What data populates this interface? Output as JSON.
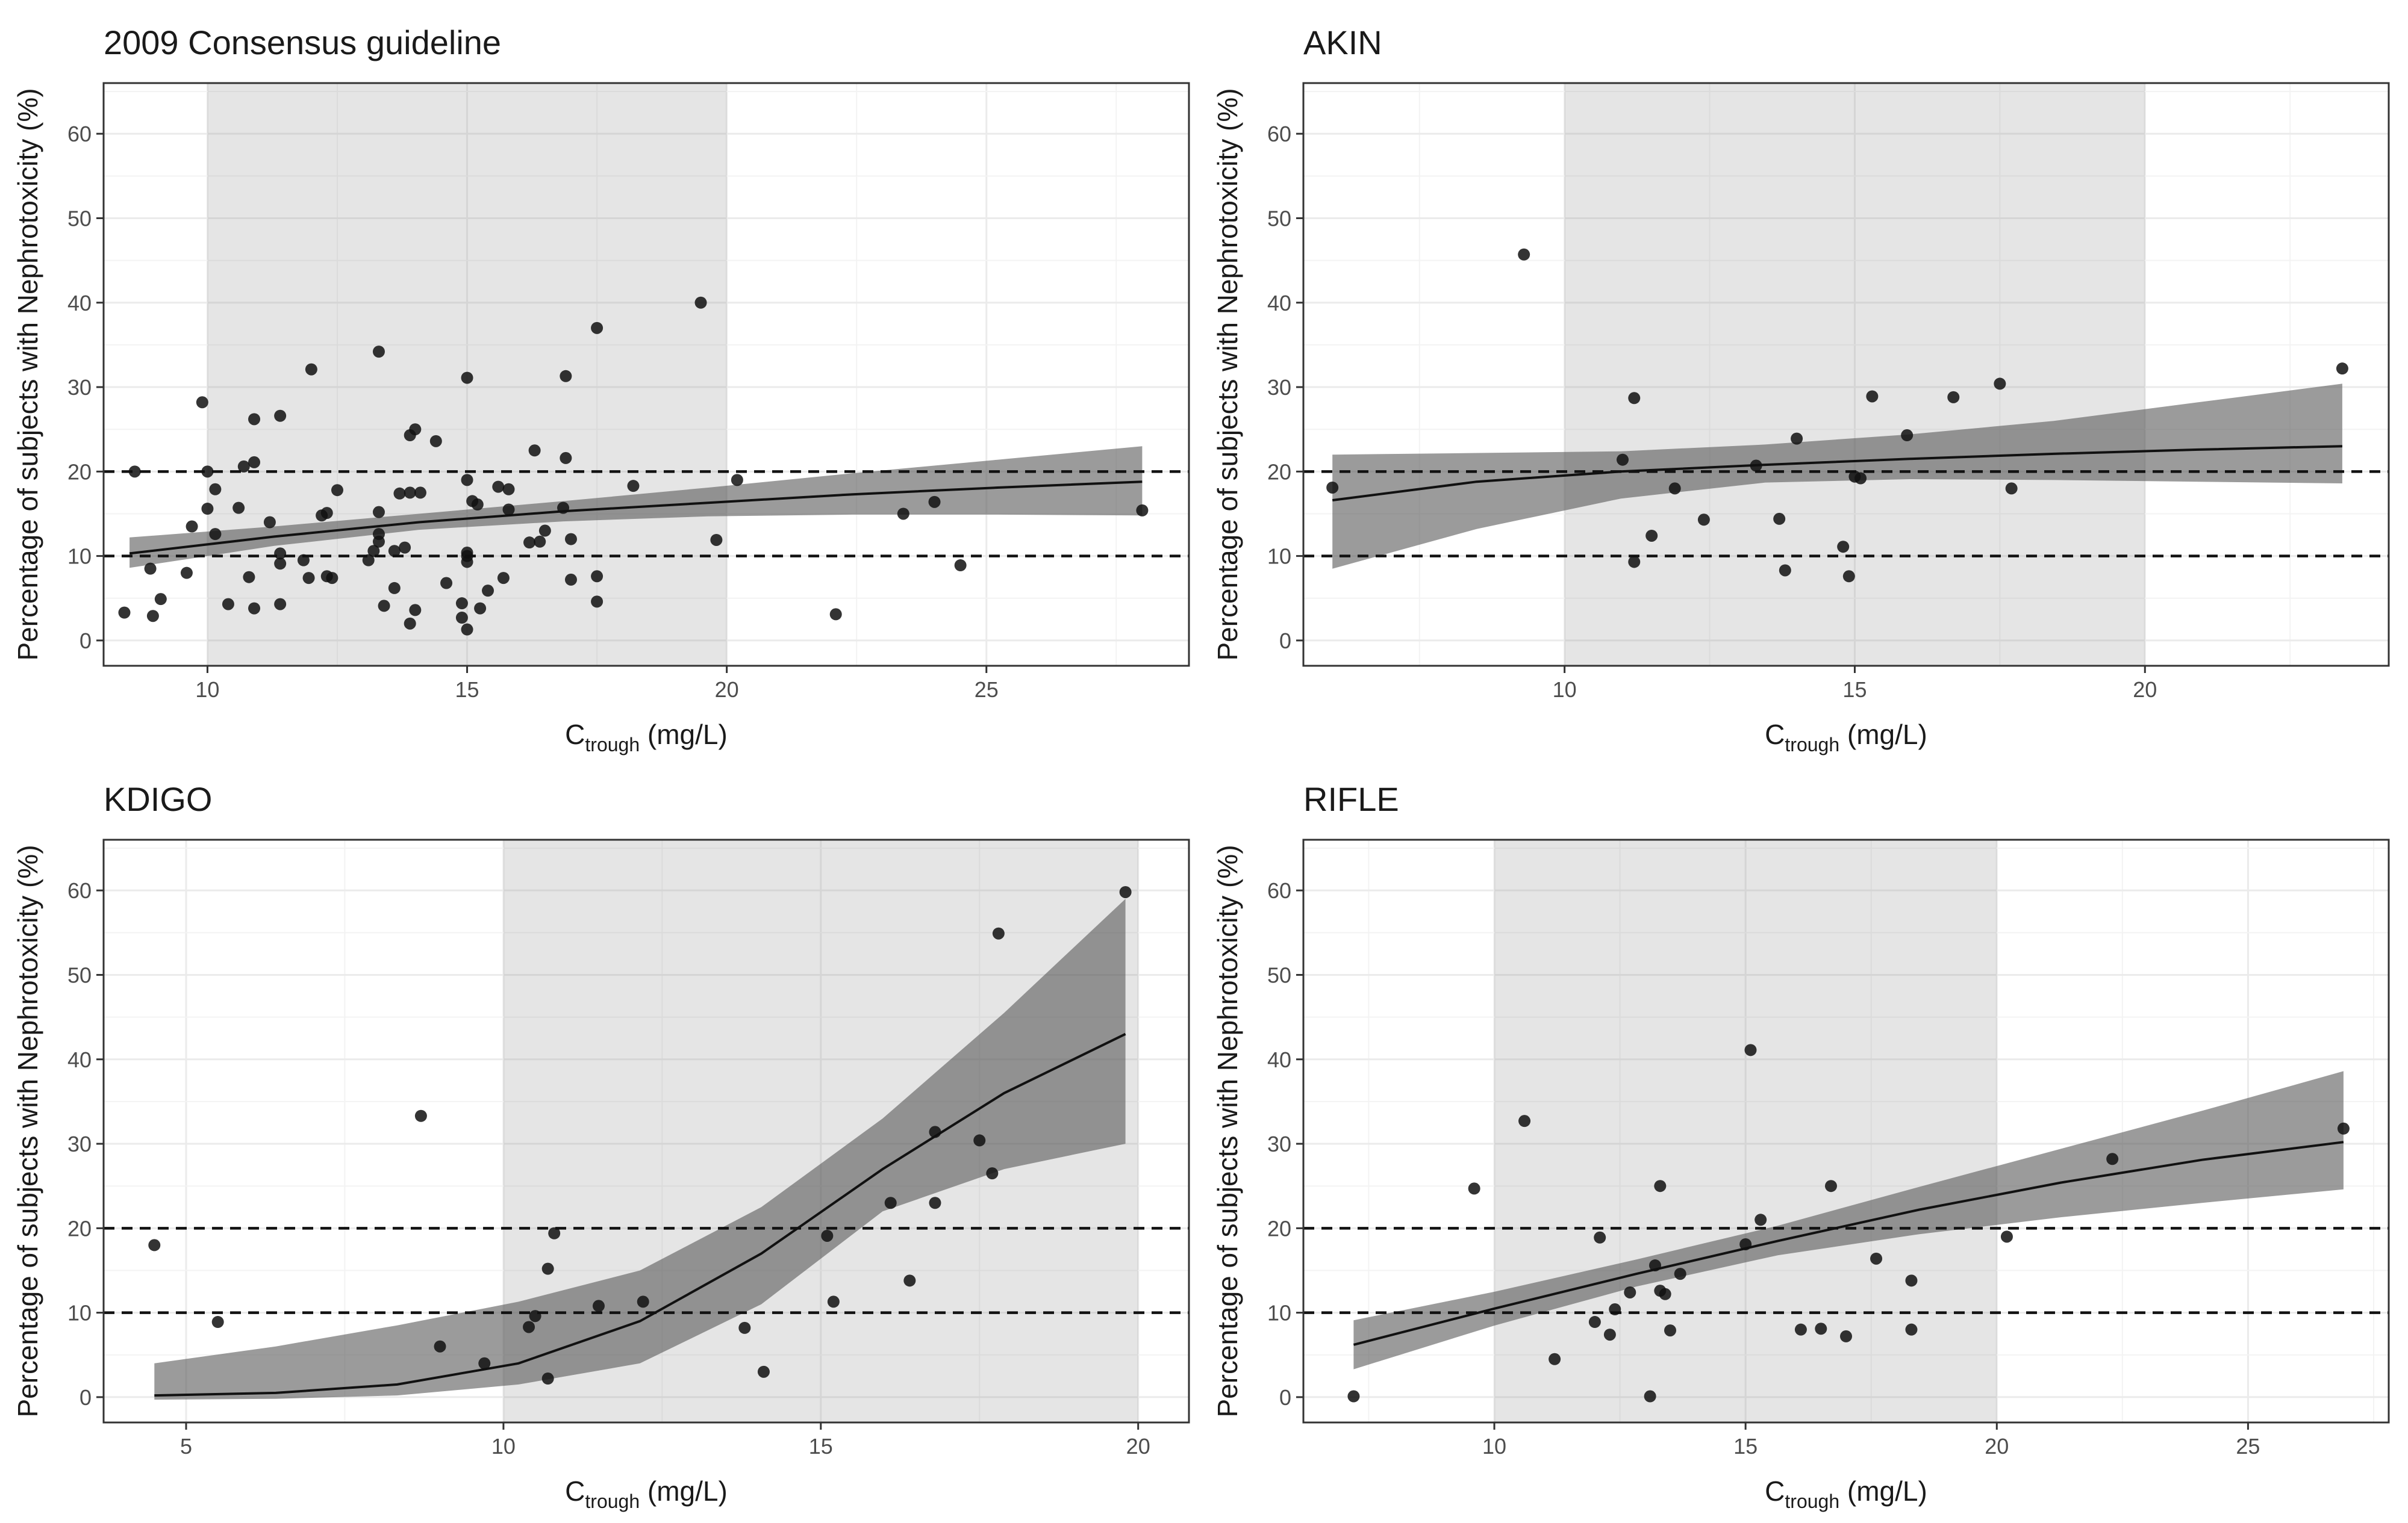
{
  "figure": {
    "y_label": "Percentage of subjects with Nephrotoxicity (%)",
    "x_label_main": "C",
    "x_label_sub": "trough",
    "x_label_unit": " (mg/L)"
  },
  "chart_data": [
    {
      "type": "scatter",
      "title": "2009 Consensus guideline",
      "xlim": [
        8.0,
        28.9
      ],
      "ylim": [
        -3,
        66
      ],
      "xticks": [
        10,
        15,
        20,
        25
      ],
      "yticks": [
        0,
        10,
        20,
        30,
        40,
        50,
        60
      ],
      "target_band": [
        10,
        20
      ],
      "reference_lines": [
        10,
        20
      ],
      "points": [
        [
          8.4,
          3.3
        ],
        [
          8.6,
          20
        ],
        [
          8.9,
          8.5
        ],
        [
          8.95,
          2.9
        ],
        [
          9.1,
          4.9
        ],
        [
          9.6,
          8
        ],
        [
          9.7,
          13.5
        ],
        [
          9.9,
          28.2
        ],
        [
          10,
          15.6
        ],
        [
          10,
          20
        ],
        [
          10.15,
          12.6
        ],
        [
          10.15,
          17.9
        ],
        [
          10.4,
          4.3
        ],
        [
          10.6,
          15.7
        ],
        [
          10.7,
          20.6
        ],
        [
          10.8,
          7.5
        ],
        [
          10.9,
          3.8
        ],
        [
          10.9,
          21.1
        ],
        [
          10.9,
          26.2
        ],
        [
          11.2,
          14
        ],
        [
          11.4,
          4.3
        ],
        [
          11.4,
          9.1
        ],
        [
          11.4,
          10.3
        ],
        [
          11.4,
          26.6
        ],
        [
          11.85,
          9.5
        ],
        [
          11.95,
          7.4
        ],
        [
          12,
          32.1
        ],
        [
          12.2,
          14.8
        ],
        [
          12.3,
          15.1
        ],
        [
          12.3,
          7.6
        ],
        [
          12.4,
          7.4
        ],
        [
          12.5,
          17.8
        ],
        [
          13.1,
          9.5
        ],
        [
          13.2,
          10.6
        ],
        [
          13.3,
          11.7
        ],
        [
          13.3,
          12.6
        ],
        [
          13.3,
          15.2
        ],
        [
          13.3,
          34.2
        ],
        [
          13.4,
          4.1
        ],
        [
          13.6,
          6.2
        ],
        [
          13.6,
          10.6
        ],
        [
          13.7,
          17.4
        ],
        [
          13.8,
          11
        ],
        [
          13.9,
          2
        ],
        [
          13.9,
          17.5
        ],
        [
          13.9,
          24.3
        ],
        [
          14,
          3.6
        ],
        [
          14,
          25
        ],
        [
          14.1,
          17.5
        ],
        [
          14.4,
          23.6
        ],
        [
          14.6,
          6.8
        ],
        [
          14.9,
          2.7
        ],
        [
          14.9,
          4.4
        ],
        [
          15,
          1.3
        ],
        [
          15,
          9.3
        ],
        [
          15,
          10
        ],
        [
          15,
          10.4
        ],
        [
          15,
          19
        ],
        [
          15,
          31.1
        ],
        [
          15.1,
          16.5
        ],
        [
          15.2,
          16.1
        ],
        [
          15.25,
          3.8
        ],
        [
          15.4,
          5.9
        ],
        [
          15.6,
          18.2
        ],
        [
          15.7,
          7.4
        ],
        [
          15.8,
          15.5
        ],
        [
          15.8,
          17.9
        ],
        [
          16.2,
          11.6
        ],
        [
          16.3,
          22.5
        ],
        [
          16.4,
          11.7
        ],
        [
          16.5,
          13
        ],
        [
          16.85,
          15.7
        ],
        [
          16.9,
          31.3
        ],
        [
          16.9,
          21.6
        ],
        [
          17,
          7.2
        ],
        [
          17,
          12
        ],
        [
          17.5,
          4.6
        ],
        [
          17.5,
          7.6
        ],
        [
          17.5,
          37
        ],
        [
          18.2,
          18.3
        ],
        [
          19.5,
          40
        ],
        [
          19.8,
          11.9
        ],
        [
          20.2,
          19
        ],
        [
          22.1,
          3.1
        ],
        [
          23.4,
          15
        ],
        [
          24,
          16.4
        ],
        [
          24.5,
          8.9
        ],
        [
          28,
          15.4
        ]
      ],
      "fit_x": [
        8.5,
        28
      ],
      "fit": [
        10.3,
        12.3,
        14,
        15.3,
        16.3,
        17.3,
        18.1,
        18.8
      ],
      "band_low": [
        8.6,
        11.2,
        13.1,
        14.1,
        14.7,
        14.9,
        14.9,
        14.8
      ],
      "band_high": [
        12.2,
        13.5,
        15,
        16.5,
        18.1,
        19.8,
        21.4,
        23
      ]
    },
    {
      "type": "scatter",
      "title": "AKIN",
      "xlim": [
        5.5,
        24.2
      ],
      "ylim": [
        -3,
        66
      ],
      "xticks": [
        10,
        15,
        20
      ],
      "yticks": [
        0,
        10,
        20,
        30,
        40,
        50,
        60
      ],
      "target_band": [
        10,
        20
      ],
      "reference_lines": [
        10,
        20
      ],
      "points": [
        [
          6,
          18.1
        ],
        [
          9.3,
          45.7
        ],
        [
          11,
          21.4
        ],
        [
          11.2,
          28.7
        ],
        [
          11.2,
          9.3
        ],
        [
          11.5,
          12.4
        ],
        [
          11.9,
          18
        ],
        [
          12.4,
          14.3
        ],
        [
          13.3,
          20.7
        ],
        [
          13.7,
          14.4
        ],
        [
          13.8,
          8.3
        ],
        [
          14,
          23.9
        ],
        [
          14.8,
          11.1
        ],
        [
          14.9,
          7.6
        ],
        [
          15,
          19.4
        ],
        [
          15.1,
          19.2
        ],
        [
          15.3,
          28.9
        ],
        [
          15.9,
          24.3
        ],
        [
          16.7,
          28.8
        ],
        [
          17.5,
          30.4
        ],
        [
          17.7,
          18
        ],
        [
          23.4,
          32.2
        ]
      ],
      "fit_x": [
        6,
        23.4
      ],
      "fit": [
        16.6,
        18.8,
        20,
        20.8,
        21.5,
        22.1,
        22.6,
        23
      ],
      "band_low": [
        8.5,
        13.2,
        16.8,
        18.7,
        19.1,
        19,
        18.8,
        18.6
      ],
      "band_high": [
        22,
        22.2,
        22.4,
        23.2,
        24.4,
        26,
        28.2,
        30.4
      ]
    },
    {
      "type": "scatter",
      "title": "KDIGO",
      "xlim": [
        3.7,
        20.8
      ],
      "ylim": [
        -3,
        66
      ],
      "xticks": [
        5,
        10,
        15,
        20
      ],
      "yticks": [
        0,
        10,
        20,
        30,
        40,
        50,
        60
      ],
      "target_band": [
        10,
        20
      ],
      "reference_lines": [
        10,
        20
      ],
      "points": [
        [
          4.5,
          18
        ],
        [
          5.5,
          8.9
        ],
        [
          8.7,
          33.3
        ],
        [
          9,
          6
        ],
        [
          9.7,
          4
        ],
        [
          10.4,
          8.3
        ],
        [
          10.5,
          9.6
        ],
        [
          10.7,
          15.2
        ],
        [
          10.7,
          2.2
        ],
        [
          10.8,
          19.4
        ],
        [
          11.5,
          10.8
        ],
        [
          12.2,
          11.3
        ],
        [
          13.8,
          8.2
        ],
        [
          14.1,
          3
        ],
        [
          15.1,
          19.1
        ],
        [
          15.2,
          11.3
        ],
        [
          16.1,
          23
        ],
        [
          16.4,
          13.8
        ],
        [
          16.8,
          31.4
        ],
        [
          16.8,
          23
        ],
        [
          17.5,
          30.4
        ],
        [
          17.7,
          26.5
        ],
        [
          17.8,
          54.9
        ],
        [
          19.8,
          59.8
        ]
      ],
      "fit_x": [
        4.5,
        19.8
      ],
      "fit": [
        0.2,
        0.5,
        1.5,
        4,
        9,
        17,
        27,
        36,
        43
      ],
      "band_low": [
        -0.3,
        -0.2,
        0.2,
        1.5,
        4,
        11,
        22,
        27,
        30
      ],
      "band_high": [
        4,
        6,
        8.5,
        11.3,
        15,
        22.5,
        33,
        45.5,
        59
      ]
    },
    {
      "type": "scatter",
      "title": "RIFLE",
      "xlim": [
        6.2,
        27.8
      ],
      "ylim": [
        -3,
        66
      ],
      "xticks": [
        10,
        15,
        20,
        25
      ],
      "yticks": [
        0,
        10,
        20,
        30,
        40,
        50,
        60
      ],
      "target_band": [
        10,
        20
      ],
      "reference_lines": [
        10,
        20
      ],
      "points": [
        [
          7.2,
          0.1
        ],
        [
          9.6,
          24.7
        ],
        [
          10.6,
          32.7
        ],
        [
          11.2,
          4.5
        ],
        [
          12,
          8.9
        ],
        [
          12.1,
          18.9
        ],
        [
          12.3,
          7.4
        ],
        [
          12.4,
          10.4
        ],
        [
          12.7,
          12.4
        ],
        [
          13.1,
          0.1
        ],
        [
          13.2,
          15.6
        ],
        [
          13.3,
          12.6
        ],
        [
          13.3,
          25
        ],
        [
          13.4,
          12.2
        ],
        [
          13.5,
          7.9
        ],
        [
          13.7,
          14.6
        ],
        [
          15,
          18.1
        ],
        [
          15.1,
          41.1
        ],
        [
          15.3,
          21
        ],
        [
          16.1,
          8
        ],
        [
          16.5,
          8.1
        ],
        [
          16.7,
          25
        ],
        [
          17,
          7.2
        ],
        [
          17.6,
          16.4
        ],
        [
          18.3,
          13.8
        ],
        [
          18.3,
          8
        ],
        [
          20.2,
          19
        ],
        [
          22.3,
          28.2
        ],
        [
          26.9,
          31.8
        ]
      ],
      "fit_x": [
        7.2,
        26.9
      ],
      "fit": [
        6.2,
        10.5,
        14.6,
        18.5,
        22.2,
        25.4,
        28.1,
        30.2
      ],
      "band_low": [
        3.3,
        8.5,
        13.1,
        16.8,
        19.3,
        21.3,
        23,
        24.6
      ],
      "band_high": [
        9.1,
        12.5,
        16.3,
        20.3,
        24.9,
        29.4,
        33.9,
        38.6
      ]
    }
  ]
}
